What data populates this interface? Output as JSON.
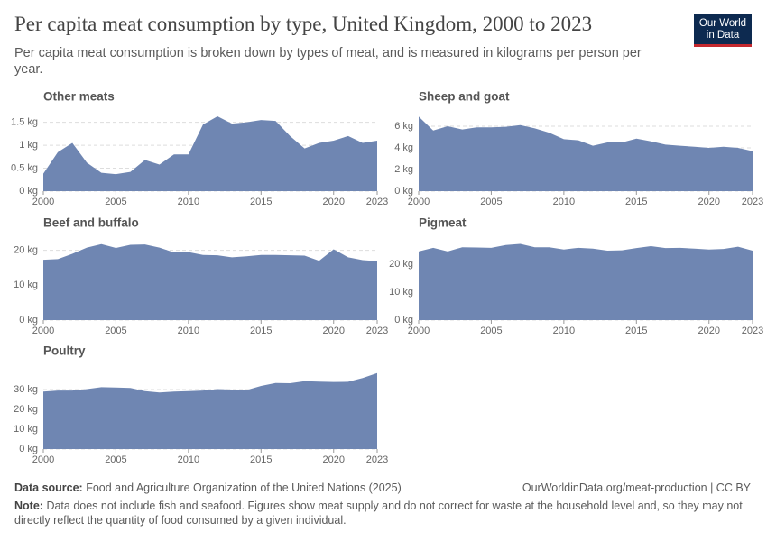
{
  "title": "Per capita meat consumption by type, United Kingdom, 2000 to 2023",
  "subtitle": "Per capita meat consumption is broken down by types of meat, and is measured in kilograms per person per year.",
  "logo": {
    "line1": "Our World",
    "line2": "in Data"
  },
  "footer": {
    "source_label": "Data source:",
    "source": "Food and Agriculture Organization of the United Nations (2025)",
    "url": "OurWorldinData.org/meat-production | CC BY",
    "note_label": "Note:",
    "note": "Data does not include fish and seafood. Figures show meat supply and do not correct for waste at the household level and, so they may not directly reflect the quantity of food consumed by a given individual."
  },
  "chart_data": [
    {
      "type": "area",
      "title": "Other meats",
      "color": "#6f86b2",
      "grid": true,
      "x": [
        2000,
        2001,
        2002,
        2003,
        2004,
        2005,
        2006,
        2007,
        2008,
        2009,
        2010,
        2011,
        2012,
        2013,
        2014,
        2015,
        2016,
        2017,
        2018,
        2019,
        2020,
        2021,
        2022,
        2023
      ],
      "values": [
        0.38,
        0.85,
        1.05,
        0.62,
        0.4,
        0.37,
        0.42,
        0.68,
        0.58,
        0.8,
        0.8,
        1.45,
        1.63,
        1.47,
        1.5,
        1.55,
        1.53,
        1.2,
        0.93,
        1.05,
        1.1,
        1.2,
        1.05,
        1.1
      ],
      "xlim": [
        2000,
        2023
      ],
      "xticks": [
        2000,
        2005,
        2010,
        2015,
        2020,
        2023
      ],
      "ylim": [
        0,
        1.65
      ],
      "yticks": [
        {
          "value": 0,
          "label": "0 kg"
        },
        {
          "value": 0.5,
          "label": "0.5 kg"
        },
        {
          "value": 1,
          "label": "1 kg"
        },
        {
          "value": 1.5,
          "label": "1.5 kg"
        }
      ]
    },
    {
      "type": "area",
      "title": "Sheep and goat",
      "color": "#6f86b2",
      "grid": true,
      "x": [
        2000,
        2001,
        2002,
        2003,
        2004,
        2005,
        2006,
        2007,
        2008,
        2009,
        2010,
        2011,
        2012,
        2013,
        2014,
        2015,
        2016,
        2017,
        2018,
        2019,
        2020,
        2021,
        2022,
        2023
      ],
      "values": [
        6.9,
        5.6,
        6.0,
        5.7,
        5.9,
        5.9,
        5.95,
        6.1,
        5.8,
        5.4,
        4.8,
        4.7,
        4.2,
        4.5,
        4.5,
        4.85,
        4.6,
        4.3,
        4.2,
        4.1,
        4.0,
        4.1,
        4.0,
        3.7
      ],
      "xlim": [
        2000,
        2023
      ],
      "xticks": [
        2000,
        2005,
        2010,
        2015,
        2020,
        2023
      ],
      "ylim": [
        0,
        7
      ],
      "yticks": [
        {
          "value": 0,
          "label": "0 kg"
        },
        {
          "value": 2,
          "label": "2 kg"
        },
        {
          "value": 4,
          "label": "4 kg"
        },
        {
          "value": 6,
          "label": "6 kg"
        }
      ]
    },
    {
      "type": "area",
      "title": "Beef and buffalo",
      "color": "#6f86b2",
      "grid": true,
      "x": [
        2000,
        2001,
        2002,
        2003,
        2004,
        2005,
        2006,
        2007,
        2008,
        2009,
        2010,
        2011,
        2012,
        2013,
        2014,
        2015,
        2016,
        2017,
        2018,
        2019,
        2020,
        2021,
        2022,
        2023
      ],
      "values": [
        17.3,
        17.5,
        19,
        20.8,
        21.8,
        20.7,
        21.6,
        21.7,
        20.8,
        19.4,
        19.5,
        18.7,
        18.6,
        18,
        18.3,
        18.7,
        18.7,
        18.6,
        18.5,
        17,
        20.3,
        18,
        17.2,
        16.9
      ],
      "xlim": [
        2000,
        2023
      ],
      "xticks": [
        2000,
        2005,
        2010,
        2015,
        2020,
        2023
      ],
      "ylim": [
        0,
        22.5
      ],
      "yticks": [
        {
          "value": 0,
          "label": "0 kg"
        },
        {
          "value": 10,
          "label": "10 kg"
        },
        {
          "value": 20,
          "label": "20 kg"
        }
      ]
    },
    {
      "type": "area",
      "title": "Pigmeat",
      "color": "#6f86b2",
      "grid": true,
      "x": [
        2000,
        2001,
        2002,
        2003,
        2004,
        2005,
        2006,
        2007,
        2008,
        2009,
        2010,
        2011,
        2012,
        2013,
        2014,
        2015,
        2016,
        2017,
        2018,
        2019,
        2020,
        2021,
        2022,
        2023
      ],
      "values": [
        24.5,
        25.8,
        24.5,
        26,
        25.9,
        25.8,
        26.8,
        27.2,
        26,
        26,
        25.2,
        25.8,
        25.5,
        24.8,
        24.9,
        25.7,
        26.4,
        25.7,
        25.8,
        25.5,
        25.2,
        25.4,
        26.2,
        24.8
      ],
      "xlim": [
        2000,
        2023
      ],
      "xticks": [
        2000,
        2005,
        2010,
        2015,
        2020,
        2023
      ],
      "ylim": [
        0,
        28
      ],
      "yticks": [
        {
          "value": 0,
          "label": "0 kg"
        },
        {
          "value": 10,
          "label": "10 kg"
        },
        {
          "value": 20,
          "label": "20 kg"
        }
      ]
    },
    {
      "type": "area",
      "title": "Poultry",
      "color": "#6f86b2",
      "grid": true,
      "x": [
        2000,
        2001,
        2002,
        2003,
        2004,
        2005,
        2006,
        2007,
        2008,
        2009,
        2010,
        2011,
        2012,
        2013,
        2014,
        2015,
        2016,
        2017,
        2018,
        2019,
        2020,
        2021,
        2022,
        2023
      ],
      "values": [
        29,
        29.5,
        29.5,
        30.2,
        31.2,
        31,
        30.8,
        29.2,
        28.5,
        29,
        29.2,
        29.5,
        30.2,
        30,
        29.7,
        31.8,
        33.3,
        33.2,
        34.2,
        34,
        33.8,
        33.9,
        35.8,
        38.3
      ],
      "xlim": [
        2000,
        2023
      ],
      "xticks": [
        2000,
        2005,
        2010,
        2015,
        2020,
        2023
      ],
      "ylim": [
        0,
        40
      ],
      "yticks": [
        {
          "value": 0,
          "label": "0 kg"
        },
        {
          "value": 10,
          "label": "10 kg"
        },
        {
          "value": 20,
          "label": "20 kg"
        },
        {
          "value": 30,
          "label": "30 kg"
        }
      ]
    }
  ]
}
